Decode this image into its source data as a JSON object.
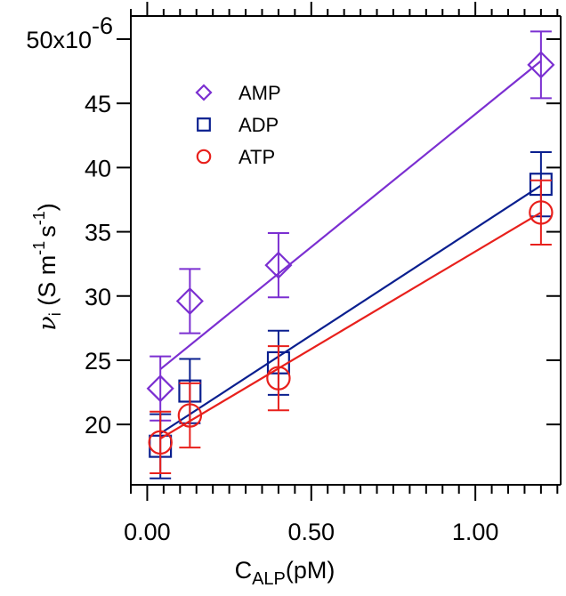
{
  "chart_data": {
    "type": "scatter",
    "x_axis": {
      "label_main": "C",
      "label_sub": "ALP",
      "label_unit": "(pM)",
      "range": [
        -0.05,
        1.26
      ],
      "major_ticks": [
        0.0,
        0.5,
        1.0
      ],
      "tick_labels": [
        "0.00",
        "0.50",
        "1.00"
      ],
      "minor_step": 0.05
    },
    "y_axis": {
      "label_symbol": "ν",
      "label_sub": "i",
      "label_open": " (S m",
      "label_exp1": "-1",
      "label_mid": "s",
      "label_exp2": "-1",
      "label_close": ")",
      "range": [
        15.3,
        51.8
      ],
      "major_ticks": [
        20,
        25,
        30,
        35,
        40,
        45,
        50
      ],
      "tick_labels": [
        "20",
        "25",
        "30",
        "35",
        "40",
        "45",
        "50x10"
      ],
      "multiplier_exponent": "-6"
    },
    "legend_position": "top-left",
    "grid": false,
    "series": [
      {
        "name": "AMP",
        "color": "#7b2fd1",
        "marker": "diamond",
        "x": [
          0.04,
          0.13,
          0.4,
          1.2
        ],
        "y": [
          22.8,
          29.6,
          32.4,
          48.0
        ],
        "err": [
          2.5,
          2.5,
          2.5,
          2.6
        ],
        "fit": [
          [
            0.04,
            24.3
          ],
          [
            1.2,
            48.3
          ]
        ]
      },
      {
        "name": "ADP",
        "color": "#0a1f8f",
        "marker": "square",
        "x": [
          0.04,
          0.13,
          0.4,
          1.2
        ],
        "y": [
          18.3,
          22.6,
          24.8,
          38.7
        ],
        "err": [
          2.5,
          2.5,
          2.5,
          2.5
        ],
        "fit": [
          [
            0.04,
            19.3
          ],
          [
            1.2,
            38.6
          ]
        ]
      },
      {
        "name": "ATP",
        "color": "#e8201c",
        "marker": "circle",
        "x": [
          0.04,
          0.13,
          0.4,
          1.2
        ],
        "y": [
          18.6,
          20.7,
          23.6,
          36.5
        ],
        "err": [
          2.4,
          2.5,
          2.5,
          2.5
        ],
        "fit": [
          [
            0.04,
            18.9
          ],
          [
            1.2,
            36.5
          ]
        ]
      }
    ]
  }
}
